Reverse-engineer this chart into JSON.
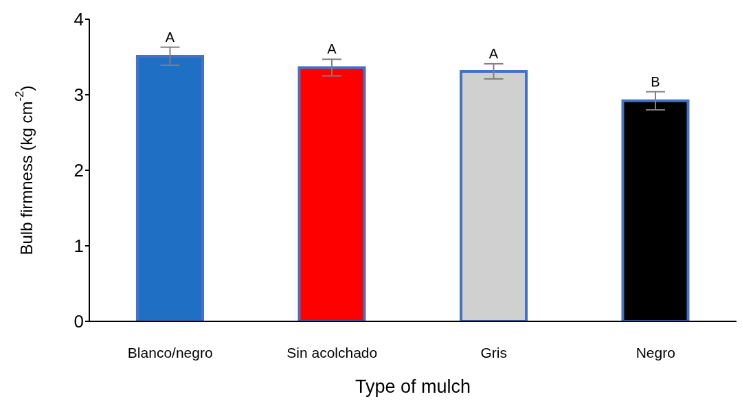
{
  "chart_data": {
    "type": "bar",
    "xlabel": "Type of mulch",
    "ylabel": "Bulb firmness (kg cm$^{-2}$)",
    "categories": [
      "Blanco/negro",
      "Sin acolchado",
      "Gris",
      "Negro"
    ],
    "values": [
      3.51,
      3.36,
      3.31,
      2.92
    ],
    "colors": [
      "#1f6fc5",
      "#ff0000",
      "#d0d0d0",
      "#000000"
    ],
    "errors": [
      0.12,
      0.11,
      0.1,
      0.12
    ],
    "ylim": [
      0,
      4
    ],
    "yticks": [
      0,
      1,
      2,
      3,
      4
    ],
    "grid": false,
    "legend": false,
    "annotations": [
      "A",
      "A",
      "A",
      "B"
    ]
  }
}
